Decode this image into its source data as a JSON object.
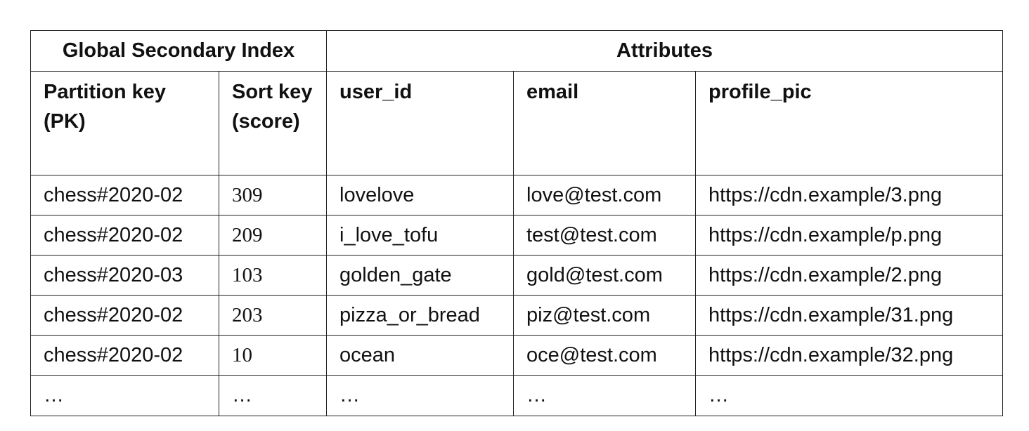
{
  "groups": {
    "gsi": "Global Secondary Index",
    "attributes": "Attributes"
  },
  "columns": [
    "Partition key (PK)",
    "Sort key (score)",
    "user_id",
    "email",
    "profile_pic"
  ],
  "rows": [
    [
      "chess#2020-02",
      "309",
      "lovelove",
      "love@test.com",
      "https://cdn.example/3.png"
    ],
    [
      "chess#2020-02",
      "209",
      "i_love_tofu",
      "test@test.com",
      "https://cdn.example/p.png"
    ],
    [
      "chess#2020-03",
      "103",
      "golden_gate",
      "gold@test.com",
      "https://cdn.example/2.png"
    ],
    [
      "chess#2020-02",
      "203",
      "pizza_or_bread",
      "piz@test.com",
      "https://cdn.example/31.png"
    ],
    [
      "chess#2020-02",
      "10",
      "ocean",
      "oce@test.com",
      "https://cdn.example/32.png"
    ],
    [
      "…",
      "…",
      "…",
      "…",
      "…"
    ]
  ]
}
